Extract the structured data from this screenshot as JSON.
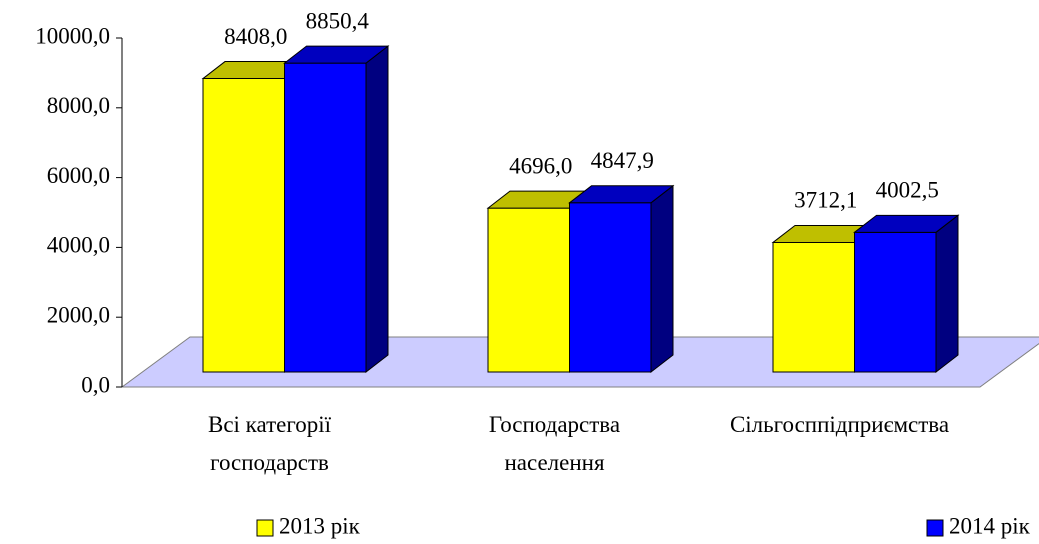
{
  "chart_data": {
    "type": "bar3d",
    "categories": [
      "Всі категорії\nгосподарств",
      "Господарства\nнаселення",
      "Сільгосппідприємства"
    ],
    "series": [
      {
        "name": "2013 рік",
        "color": "#ffff00",
        "values": [
          8408.0,
          4696.0,
          3712.1
        ],
        "value_labels": [
          "8408,0",
          "4696,0",
          "3712,1"
        ]
      },
      {
        "name": "2014 рік",
        "color": "#0000ff",
        "values": [
          8850.4,
          4847.9,
          4002.5
        ],
        "value_labels": [
          "8850,4",
          "4847,9",
          "4002,5"
        ]
      }
    ],
    "ylim": [
      0,
      10000
    ],
    "yticks": [
      {
        "value": 0,
        "label": "0,0"
      },
      {
        "value": 2000,
        "label": "2000,0"
      },
      {
        "value": 4000,
        "label": "4000,0"
      },
      {
        "value": 6000,
        "label": "6000,0"
      },
      {
        "value": 8000,
        "label": "8000,0"
      },
      {
        "value": 10000,
        "label": "10000,0"
      }
    ],
    "legend": "bottom"
  }
}
